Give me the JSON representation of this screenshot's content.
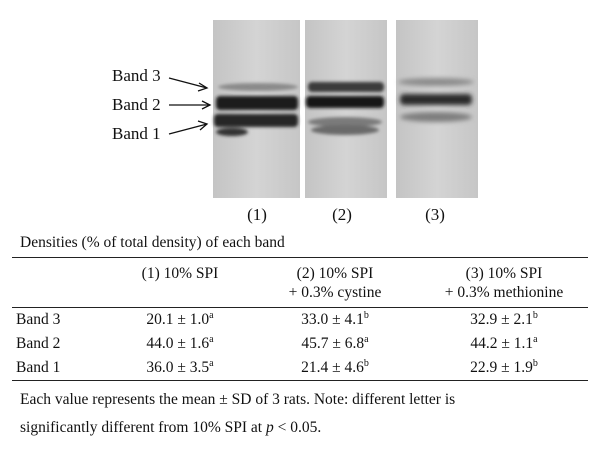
{
  "bands": [
    "Band 3",
    "Band 2",
    "Band 1"
  ],
  "lanes": [
    "(1)",
    "(2)",
    "(3)"
  ],
  "caption": "Densities (% of total density) of each band",
  "table": {
    "headers": [
      {
        "line1": "",
        "line2": ""
      },
      {
        "line1": "(1) 10% SPI",
        "line2": ""
      },
      {
        "line1": "(2) 10% SPI",
        "line2": "+ 0.3% cystine"
      },
      {
        "line1": "(3) 10% SPI",
        "line2": "+ 0.3% methionine"
      }
    ],
    "rows": [
      {
        "label": "Band 3",
        "cells": [
          {
            "value": "20.1 ± 1.0",
            "sup": "a"
          },
          {
            "value": "33.0 ± 4.1",
            "sup": "b"
          },
          {
            "value": "32.9 ± 2.1",
            "sup": "b"
          }
        ]
      },
      {
        "label": "Band 2",
        "cells": [
          {
            "value": "44.0 ± 1.6",
            "sup": "a"
          },
          {
            "value": "45.7 ± 6.8",
            "sup": "a"
          },
          {
            "value": "44.2 ± 1.1",
            "sup": "a"
          }
        ]
      },
      {
        "label": "Band 1",
        "cells": [
          {
            "value": "36.0 ± 3.5",
            "sup": "a"
          },
          {
            "value": "21.4 ± 4.6",
            "sup": "b"
          },
          {
            "value": "22.9 ± 1.9",
            "sup": "b"
          }
        ]
      }
    ]
  },
  "note": {
    "line1": "Each value represents the mean ± SD of 3 rats. Note: different letter is",
    "line2_pre": "significantly different from 10% SPI at ",
    "line2_var": "p",
    "line2_post": " < 0.05."
  }
}
